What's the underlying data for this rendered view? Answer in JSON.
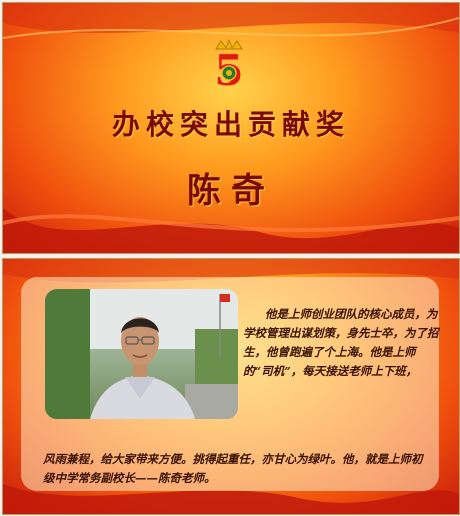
{
  "top_slide": {
    "logo_digit": "5",
    "title": "办校突出贡献奖",
    "name": "陈奇"
  },
  "bottom_slide": {
    "bio_right": "他是上师创业团队的核心成员，为学校管理出谋划策，身先士卒，为了招生，他曾跑遍了个上海。他是上师的“司机”，每天接送老师上下班，",
    "bio_bottom": "风雨兼程，给大家带来方便。挑得起重任，亦甘心为绿叶。他，就是上师初级中学常务副校长——陈奇老师。"
  },
  "colors": {
    "title_red": "#7a0a0a",
    "bg_orange": "#ff9a1f",
    "bg_red": "#c91c0b"
  }
}
